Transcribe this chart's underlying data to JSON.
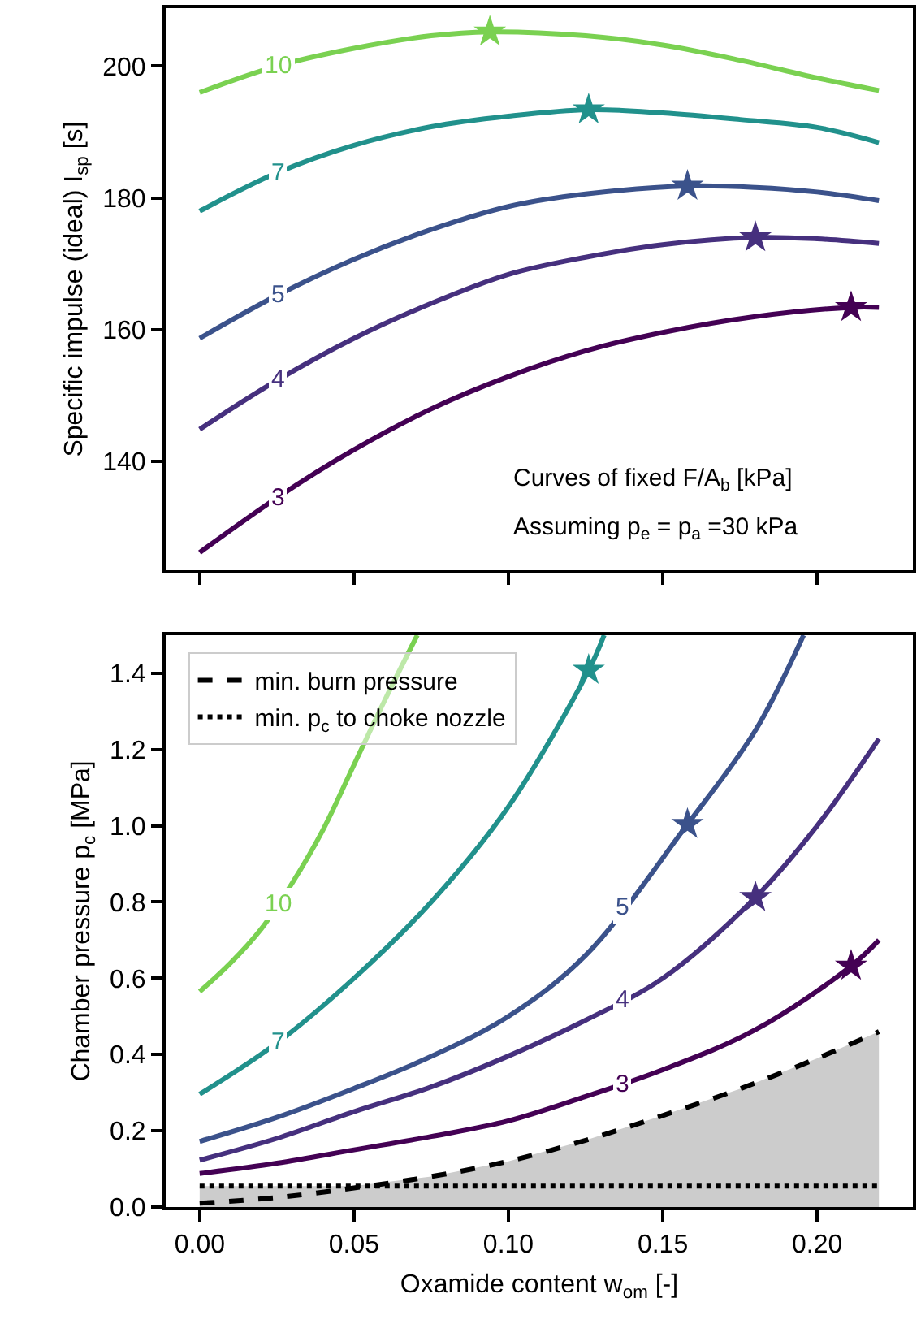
{
  "chart_data": [
    {
      "type": "line",
      "ylabel": "Specific impulse (ideal) I$_{sp}$ [s]",
      "xlim": [
        -0.011,
        0.231
      ],
      "ylim": [
        123.5,
        208.8
      ],
      "xticks": [
        0,
        0.05,
        0.1,
        0.15,
        0.2
      ],
      "yticks": [
        140,
        160,
        180,
        200
      ],
      "tick_labels": "y",
      "legend": false,
      "annotations": [
        "Curves of fixed F/A$_{b}$ [kPa]",
        "Assuming p$_{e}$ = p$_{a}$ =30 kPa"
      ],
      "series": [
        {
          "name": "3",
          "color": "#440154",
          "x": [
            0,
            0.025,
            0.05,
            0.075,
            0.1,
            0.125,
            0.15,
            0.18,
            0.211,
            0.22
          ],
          "values": [
            126.2,
            134.5,
            141.8,
            148.0,
            152.9,
            156.8,
            159.6,
            162.0,
            163.4,
            163.4
          ]
        },
        {
          "name": "4",
          "color": "#46307e",
          "x": [
            0,
            0.025,
            0.05,
            0.075,
            0.1,
            0.125,
            0.15,
            0.18,
            0.2,
            0.22
          ],
          "values": [
            144.9,
            152.3,
            158.7,
            164.0,
            168.4,
            171.0,
            172.9,
            174.0,
            173.8,
            173.1
          ]
        },
        {
          "name": "5",
          "color": "#3b528b",
          "x": [
            0,
            0.025,
            0.05,
            0.075,
            0.1,
            0.125,
            0.158,
            0.18,
            0.2,
            0.22
          ],
          "values": [
            158.7,
            165.2,
            170.7,
            175.2,
            178.7,
            180.6,
            181.8,
            181.6,
            180.9,
            179.6
          ]
        },
        {
          "name": "7",
          "color": "#21918c",
          "x": [
            0,
            0.025,
            0.05,
            0.075,
            0.1,
            0.126,
            0.15,
            0.175,
            0.2,
            0.22
          ],
          "values": [
            178.0,
            183.8,
            188.0,
            190.8,
            192.4,
            193.4,
            192.9,
            191.9,
            190.7,
            188.4
          ]
        },
        {
          "name": "10",
          "color": "#7ad151",
          "x": [
            0,
            0.025,
            0.05,
            0.075,
            0.094,
            0.125,
            0.15,
            0.175,
            0.2,
            0.22
          ],
          "values": [
            196.0,
            200.0,
            202.7,
            204.6,
            205.2,
            204.6,
            203.2,
            200.9,
            198.2,
            196.3
          ]
        },
        {
          "type": "scatter",
          "marker": "star",
          "x": [
            0.094,
            0.126,
            0.158,
            0.18,
            0.211
          ],
          "values": [
            205.2,
            193.4,
            181.8,
            174.0,
            163.4
          ],
          "colors": [
            "#7ad151",
            "#21918c",
            "#3b528b",
            "#46307e",
            "#440154"
          ]
        }
      ]
    },
    {
      "type": "line",
      "xlabel": "Oxamide content w$_{om}$ [-]",
      "ylabel": "Chamber pressure p$_{c}$ [MPa]",
      "xlim": [
        -0.011,
        0.231
      ],
      "ylim": [
        0,
        1.5
      ],
      "xticks": [
        {
          "value": 0,
          "label": "0.00"
        },
        {
          "value": 0.05,
          "label": "0.05"
        },
        {
          "value": 0.1,
          "label": "0.10"
        },
        {
          "value": 0.15,
          "label": "0.15"
        },
        {
          "value": 0.2,
          "label": "0.20"
        }
      ],
      "yticks": [
        {
          "value": 0,
          "label": "0.0"
        },
        {
          "value": 0.2,
          "label": "0.2"
        },
        {
          "value": 0.4,
          "label": "0.4"
        },
        {
          "value": 0.6,
          "label": "0.6"
        },
        {
          "value": 0.8,
          "label": "0.8"
        },
        {
          "value": 1.0,
          "label": "1.0"
        },
        {
          "value": 1.2,
          "label": "1.2"
        },
        {
          "value": 1.4,
          "label": "1.4"
        }
      ],
      "legend": "top left",
      "series": [
        {
          "type": "area",
          "color": "#cccccc",
          "x": [
            0,
            0.05,
            0.075,
            0.1,
            0.125,
            0.15,
            0.175,
            0.2,
            0.22
          ],
          "values": [
            0.055,
            0.055,
            0.08,
            0.12,
            0.175,
            0.24,
            0.31,
            0.39,
            0.46
          ]
        },
        {
          "name": "3",
          "color": "#440154",
          "x": [
            0,
            0.025,
            0.05,
            0.075,
            0.1,
            0.125,
            0.15,
            0.18,
            0.211,
            0.22
          ],
          "values": [
            0.088,
            0.115,
            0.15,
            0.185,
            0.226,
            0.29,
            0.36,
            0.465,
            0.632,
            0.7
          ]
        },
        {
          "name": "4",
          "color": "#46307e",
          "x": [
            0,
            0.025,
            0.05,
            0.075,
            0.1,
            0.125,
            0.15,
            0.18,
            0.2,
            0.22
          ],
          "values": [
            0.123,
            0.18,
            0.25,
            0.315,
            0.396,
            0.49,
            0.6,
            0.812,
            1.0,
            1.228
          ]
        },
        {
          "name": "5",
          "color": "#3b528b",
          "x": [
            0,
            0.025,
            0.05,
            0.075,
            0.1,
            0.125,
            0.158,
            0.18,
            0.1956
          ],
          "values": [
            0.172,
            0.235,
            0.311,
            0.395,
            0.5,
            0.66,
            1.004,
            1.25,
            1.5
          ]
        },
        {
          "name": "7",
          "color": "#21918c",
          "x": [
            0,
            0.025,
            0.05,
            0.075,
            0.1,
            0.126,
            0.131
          ],
          "values": [
            0.296,
            0.43,
            0.6,
            0.8,
            1.05,
            1.408,
            1.5
          ]
        },
        {
          "name": "10",
          "color": "#7ad151",
          "x": [
            0,
            0.01,
            0.02,
            0.03,
            0.04,
            0.05,
            0.06,
            0.0705
          ],
          "values": [
            0.565,
            0.64,
            0.73,
            0.85,
            0.99,
            1.16,
            1.33,
            1.5
          ]
        },
        {
          "name": "min. burn pressure",
          "color": "#000000",
          "line_style": "dashed",
          "x": [
            0,
            0.025,
            0.05,
            0.075,
            0.1,
            0.125,
            0.15,
            0.175,
            0.2,
            0.22
          ],
          "values": [
            0.01,
            0.025,
            0.05,
            0.08,
            0.12,
            0.175,
            0.24,
            0.31,
            0.39,
            0.46
          ]
        },
        {
          "name": "min. p$_{c}$ to choke nozzle",
          "color": "#000000",
          "line_style": "dotted",
          "x": [
            0,
            0.22
          ],
          "values": [
            0.055,
            0.055
          ]
        },
        {
          "type": "scatter",
          "marker": "star",
          "x": [
            0.126,
            0.158,
            0.18,
            0.211
          ],
          "values": [
            1.408,
            1.004,
            0.812,
            0.632
          ],
          "colors": [
            "#21918c",
            "#3b528b",
            "#46307e",
            "#440154"
          ]
        }
      ]
    }
  ]
}
